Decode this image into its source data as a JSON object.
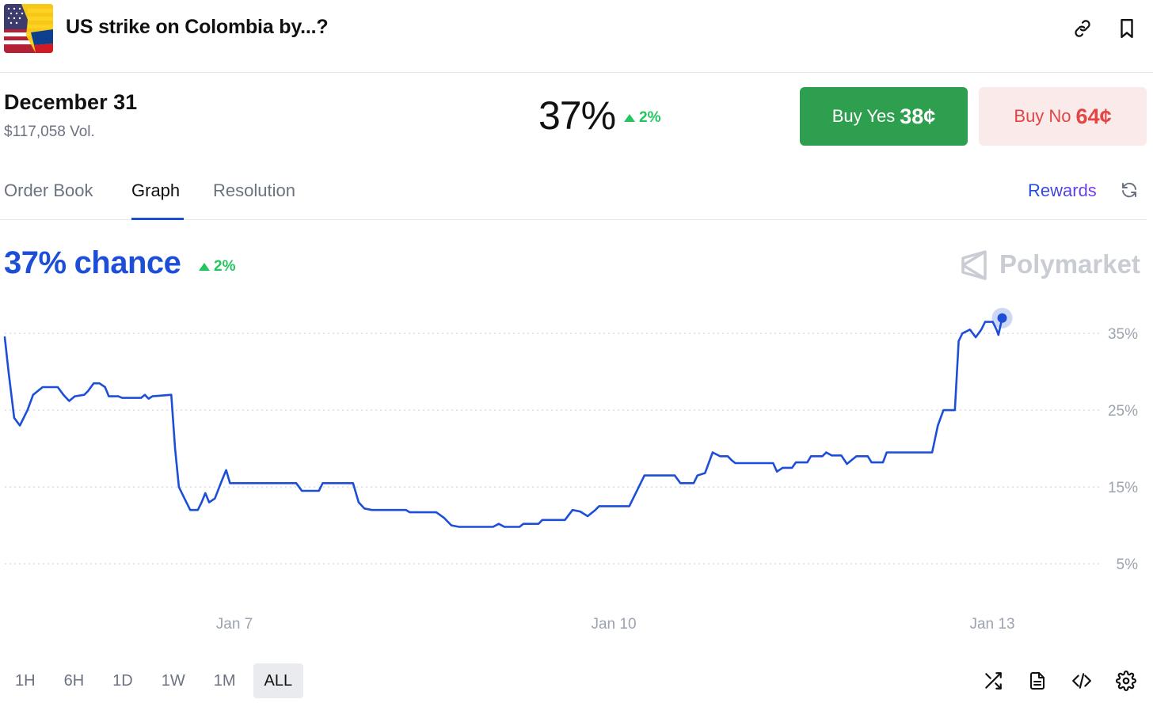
{
  "header": {
    "title": "US strike on Colombia by...?",
    "link_icon": "link-icon",
    "bookmark_icon": "bookmark-icon"
  },
  "market": {
    "outcome": "December 31",
    "volume": "$117,058 Vol.",
    "probability": "37%",
    "change": "2%"
  },
  "buttons": {
    "yes_label": "Buy Yes",
    "yes_price": "38¢",
    "no_label": "Buy No",
    "no_price": "64¢"
  },
  "tabs": [
    {
      "label": "Order Book",
      "active": false
    },
    {
      "label": "Graph",
      "active": true
    },
    {
      "label": "Resolution",
      "active": false
    }
  ],
  "rewards_label": "Rewards",
  "graph": {
    "chance_value": "37%",
    "chance_label": "chance",
    "change": "2%",
    "watermark": "Polymarket"
  },
  "colors": {
    "accent": "#1d4ed8",
    "green": "#22c55e",
    "buy_yes_bg": "#2e9e4f",
    "buy_no_bg": "#fbeaea",
    "buy_no_text": "#e14545"
  },
  "time_ranges": [
    {
      "label": "1H",
      "active": false
    },
    {
      "label": "6H",
      "active": false
    },
    {
      "label": "1D",
      "active": false
    },
    {
      "label": "1W",
      "active": false
    },
    {
      "label": "1M",
      "active": false
    },
    {
      "label": "ALL",
      "active": true
    }
  ],
  "toolbar_icons": [
    "shuffle-icon",
    "document-icon",
    "code-icon",
    "settings-icon"
  ],
  "chart_data": {
    "type": "line",
    "title": "",
    "xlabel": "",
    "ylabel": "",
    "x_ticks": [
      "Jan 7",
      "Jan 10",
      "Jan 13"
    ],
    "y_ticks": [
      "35%",
      "25%",
      "15%",
      "5%"
    ],
    "ylim": [
      0,
      0.5
    ],
    "grid": true,
    "series": [
      {
        "values": [
          [
            0.0,
            0.345
          ],
          [
            0.1,
            0.3
          ],
          [
            0.25,
            0.24
          ],
          [
            0.4,
            0.23
          ],
          [
            0.6,
            0.25
          ],
          [
            0.75,
            0.27
          ],
          [
            1.0,
            0.28
          ],
          [
            1.4,
            0.28
          ],
          [
            1.55,
            0.27
          ],
          [
            1.7,
            0.262
          ],
          [
            1.85,
            0.268
          ],
          [
            2.1,
            0.27
          ],
          [
            2.2,
            0.275
          ],
          [
            2.35,
            0.285
          ],
          [
            2.5,
            0.285
          ],
          [
            2.65,
            0.28
          ],
          [
            2.75,
            0.268
          ],
          [
            3.0,
            0.268
          ],
          [
            3.1,
            0.266
          ],
          [
            3.2,
            0.266
          ],
          [
            3.6,
            0.266
          ],
          [
            3.7,
            0.27
          ],
          [
            3.8,
            0.265
          ],
          [
            3.9,
            0.268
          ],
          [
            4.4,
            0.27
          ],
          [
            4.5,
            0.2
          ],
          [
            4.6,
            0.15
          ],
          [
            4.75,
            0.135
          ],
          [
            4.9,
            0.12
          ],
          [
            5.1,
            0.12
          ],
          [
            5.2,
            0.13
          ],
          [
            5.3,
            0.142
          ],
          [
            5.4,
            0.13
          ],
          [
            5.55,
            0.135
          ],
          [
            5.75,
            0.16
          ],
          [
            5.85,
            0.172
          ],
          [
            5.95,
            0.155
          ],
          [
            6.3,
            0.155
          ],
          [
            7.7,
            0.155
          ],
          [
            7.85,
            0.145
          ],
          [
            8.3,
            0.145
          ],
          [
            8.4,
            0.155
          ],
          [
            9.2,
            0.155
          ],
          [
            9.35,
            0.13
          ],
          [
            9.5,
            0.122
          ],
          [
            9.7,
            0.12
          ],
          [
            10.6,
            0.12
          ],
          [
            10.7,
            0.117
          ],
          [
            11.4,
            0.117
          ],
          [
            11.6,
            0.11
          ],
          [
            11.8,
            0.1
          ],
          [
            12.0,
            0.098
          ],
          [
            12.9,
            0.098
          ],
          [
            13.05,
            0.102
          ],
          [
            13.2,
            0.098
          ],
          [
            13.6,
            0.098
          ],
          [
            13.7,
            0.102
          ],
          [
            14.1,
            0.102
          ],
          [
            14.2,
            0.107
          ],
          [
            14.8,
            0.107
          ],
          [
            15.0,
            0.12
          ],
          [
            15.2,
            0.118
          ],
          [
            15.4,
            0.112
          ],
          [
            15.6,
            0.12
          ],
          [
            15.7,
            0.125
          ],
          [
            16.5,
            0.125
          ],
          [
            16.9,
            0.165
          ],
          [
            17.7,
            0.165
          ],
          [
            17.85,
            0.155
          ],
          [
            18.2,
            0.155
          ],
          [
            18.3,
            0.165
          ],
          [
            18.5,
            0.168
          ],
          [
            18.7,
            0.195
          ],
          [
            18.9,
            0.19
          ],
          [
            19.1,
            0.19
          ],
          [
            19.2,
            0.185
          ],
          [
            19.3,
            0.181
          ],
          [
            20.3,
            0.181
          ],
          [
            20.4,
            0.17
          ],
          [
            20.55,
            0.175
          ],
          [
            20.8,
            0.175
          ],
          [
            20.9,
            0.182
          ],
          [
            21.2,
            0.182
          ],
          [
            21.3,
            0.19
          ],
          [
            21.6,
            0.19
          ],
          [
            21.7,
            0.195
          ],
          [
            21.85,
            0.191
          ],
          [
            22.1,
            0.191
          ],
          [
            22.25,
            0.18
          ],
          [
            22.5,
            0.19
          ],
          [
            22.8,
            0.19
          ],
          [
            22.9,
            0.182
          ],
          [
            23.2,
            0.182
          ],
          [
            23.3,
            0.195
          ],
          [
            24.5,
            0.195
          ],
          [
            24.65,
            0.23
          ],
          [
            24.8,
            0.25
          ],
          [
            25.1,
            0.25
          ],
          [
            25.2,
            0.34
          ],
          [
            25.3,
            0.35
          ],
          [
            25.5,
            0.355
          ],
          [
            25.65,
            0.345
          ],
          [
            25.8,
            0.355
          ],
          [
            25.9,
            0.365
          ],
          [
            26.1,
            0.365
          ],
          [
            26.2,
            0.355
          ],
          [
            26.25,
            0.348
          ],
          [
            26.35,
            0.37
          ]
        ]
      }
    ]
  }
}
